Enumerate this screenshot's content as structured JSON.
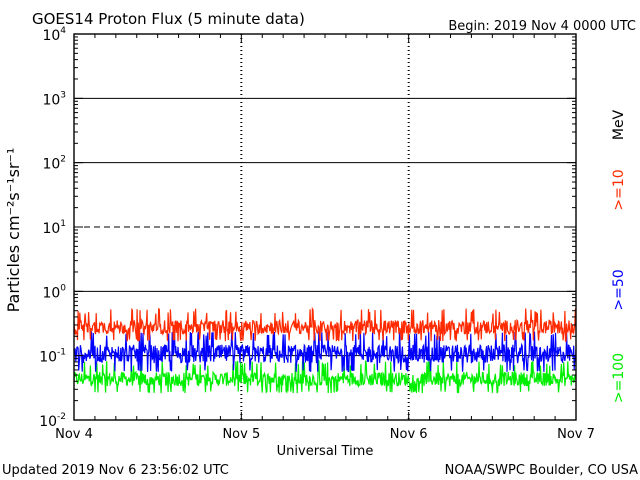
{
  "header": {
    "title": "GOES14 Proton Flux (5 minute data)",
    "begin": "Begin: 2019 Nov 4 0000 UTC"
  },
  "footer": {
    "updated": "Updated 2019 Nov  6 23:56:02 UTC",
    "source": "NOAA/SWPC Boulder, CO USA"
  },
  "chart_data": {
    "type": "line",
    "title": "GOES14 Proton Flux (5 minute data)",
    "xlabel": "Universal Time",
    "ylabel": "Particles cm⁻²s⁻¹sr⁻¹",
    "y_scale": "log",
    "ylim": [
      0.01,
      10000
    ],
    "y_ticks": [
      {
        "base": "10",
        "exp": "4"
      },
      {
        "base": "10",
        "exp": "3"
      },
      {
        "base": "10",
        "exp": "2"
      },
      {
        "base": "10",
        "exp": "1"
      },
      {
        "base": "10",
        "exp": "0"
      },
      {
        "base": "10",
        "exp": "-1"
      },
      {
        "base": "10",
        "exp": "-2"
      }
    ],
    "x_ticks": [
      "Nov 4",
      "Nov 5",
      "Nov 6",
      "Nov 7"
    ],
    "xlim": [
      "2019-11-04",
      "2019-11-07"
    ],
    "grid": true,
    "legend_placement": "right",
    "energy_unit": "MeV",
    "series": [
      {
        "name": ">=10",
        "color": "#ff2a00",
        "typical_range": [
          0.18,
          0.45
        ]
      },
      {
        "name": ">=50",
        "color": "#0000ff",
        "typical_range": [
          0.06,
          0.2
        ]
      },
      {
        "name": ">=100",
        "color": "#00ee00",
        "typical_range": [
          0.028,
          0.07
        ]
      }
    ]
  }
}
